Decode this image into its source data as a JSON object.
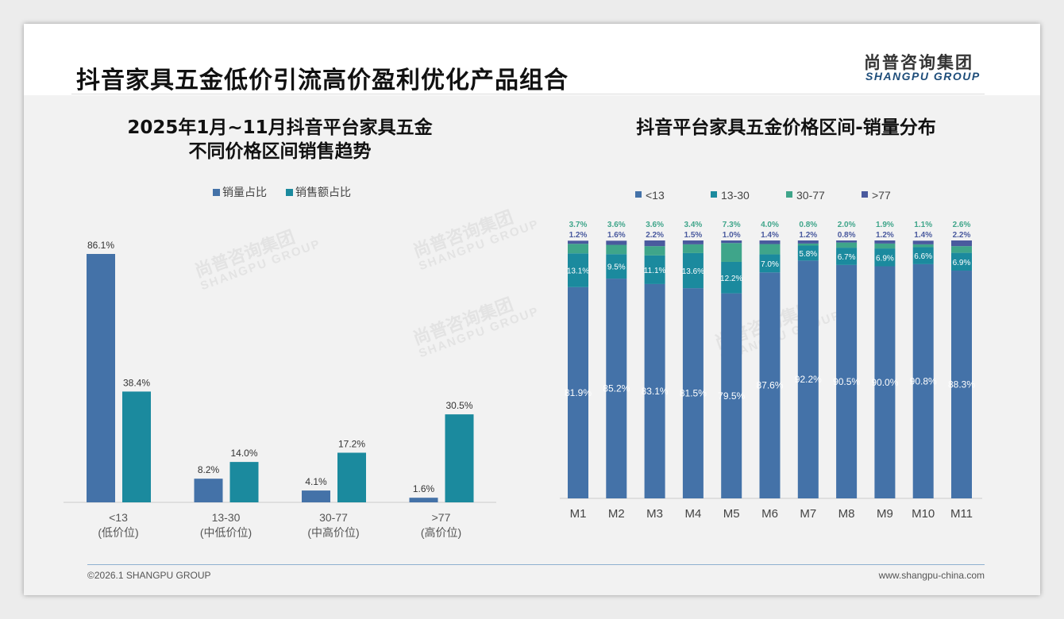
{
  "header": {
    "title": "抖音家具五金低价引流高价盈利优化产品组合",
    "logo_cn": "尚普咨询集团",
    "logo_en": "SHANGPU GROUP"
  },
  "footer": {
    "copyright": "©2026.1 SHANGPU GROUP",
    "website": "www.shangpu-china.com"
  },
  "watermark": {
    "cn": "尚普咨询集团",
    "en": "SHANGPU GROUP"
  },
  "colors": {
    "blue": "#4472a8",
    "teal": "#1b8a9e",
    "green": "#3fa58a",
    "navy": "#4a5a9e"
  },
  "chart_data": [
    {
      "type": "bar",
      "title_line1": "2025年1月~11月抖音平台家具五金",
      "title_line2": "不同价格区间销售趋势",
      "categories": [
        "<13",
        "13-30",
        "30-77",
        ">77"
      ],
      "category_sub": [
        "(低价位)",
        "(中低价位)",
        "(中高价位)",
        "(高价位)"
      ],
      "series": [
        {
          "name": "销量占比",
          "values": [
            86.1,
            8.2,
            4.1,
            1.6
          ]
        },
        {
          "name": "销售额占比",
          "values": [
            38.4,
            14.0,
            17.2,
            30.5
          ]
        }
      ],
      "unit": "%",
      "legend": "top-center",
      "ylim": [
        0,
        100
      ]
    },
    {
      "type": "bar",
      "stacked": true,
      "title": "抖音平台家具五金价格区间-销量分布",
      "categories": [
        "M1",
        "M2",
        "M3",
        "M4",
        "M5",
        "M6",
        "M7",
        "M8",
        "M9",
        "M10",
        "M11"
      ],
      "series": [
        {
          "name": "<13",
          "values": [
            81.9,
            85.2,
            83.1,
            81.5,
            79.5,
            87.6,
            92.2,
            90.5,
            90.0,
            90.8,
            88.3
          ]
        },
        {
          "name": "13-30",
          "values": [
            13.1,
            9.5,
            11.1,
            13.6,
            12.2,
            7.0,
            5.8,
            6.7,
            6.9,
            6.6,
            6.9
          ]
        },
        {
          "name": "30-77",
          "values": [
            3.7,
            3.6,
            3.6,
            3.4,
            7.3,
            4.0,
            0.8,
            2.0,
            1.9,
            1.1,
            2.6
          ]
        },
        {
          "name": ">77",
          "values": [
            1.2,
            1.6,
            2.2,
            1.5,
            1.0,
            1.4,
            1.2,
            0.8,
            1.2,
            1.4,
            2.2
          ]
        }
      ],
      "unit": "%",
      "legend": "top-center",
      "ylim": [
        0,
        100
      ]
    }
  ]
}
